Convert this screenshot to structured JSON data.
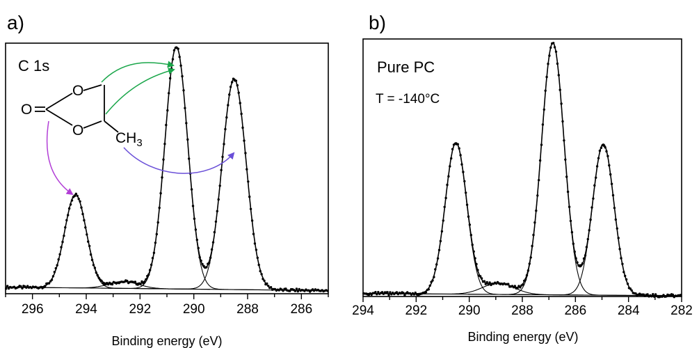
{
  "chart_data": [
    {
      "panel_label": "a)",
      "type": "scatter",
      "title": "",
      "annotation": "C 1s",
      "xlabel": "Binding energy (eV)",
      "ylabel": "",
      "xlim": [
        297,
        285
      ],
      "ylim": [
        0,
        1
      ],
      "x_reversed": true,
      "xticks": [
        296,
        294,
        292,
        290,
        288,
        286
      ],
      "xtick_labels": [
        "296",
        "294",
        "292",
        "290",
        "288",
        "286"
      ],
      "grid": false,
      "baseline": [
        [
          297,
          0.027
        ],
        [
          285,
          0.013
        ]
      ],
      "peaks": [
        {
          "center": 294.4,
          "height": 0.385,
          "fwhm": 0.95
        },
        {
          "center": 292.6,
          "height": 0.028,
          "fwhm": 1.3
        },
        {
          "center": 290.65,
          "height": 1.0,
          "fwhm": 1.0
        },
        {
          "center": 288.5,
          "height": 0.87,
          "fwhm": 1.05
        }
      ],
      "molecule": {
        "atoms": [
          "O",
          "O",
          "O"
        ],
        "substituent": "CH",
        "substituent_subscript": "3"
      },
      "arrows": [
        {
          "from": "ring CH2 carbon",
          "to_peak_center": 290.65,
          "color": "#1aa64a"
        },
        {
          "from": "ring CH carbon",
          "to_peak_center": 290.65,
          "color": "#1aa64a"
        },
        {
          "from": "carbonyl carbon",
          "to_peak_center": 294.4,
          "color": "#b23fd6"
        },
        {
          "from": "methyl carbon",
          "to_peak_center": 288.5,
          "color": "#6a4fd8"
        }
      ]
    },
    {
      "panel_label": "b)",
      "type": "scatter",
      "title": "",
      "annotation": "Pure PC",
      "annotation2": "T = -140°C",
      "xlabel": "Binding energy (eV)",
      "ylabel": "",
      "xlim": [
        294,
        282
      ],
      "ylim": [
        0,
        1
      ],
      "x_reversed": true,
      "xticks": [
        294,
        292,
        290,
        288,
        286,
        284,
        282
      ],
      "xtick_labels": [
        "294",
        "292",
        "290",
        "288",
        "286",
        "284",
        "282"
      ],
      "grid": false,
      "baseline": [
        [
          294,
          0.012
        ],
        [
          282,
          0.003
        ]
      ],
      "peaks": [
        {
          "center": 290.5,
          "height": 0.6,
          "fwhm": 0.95
        },
        {
          "center": 288.9,
          "height": 0.045,
          "fwhm": 1.4
        },
        {
          "center": 286.85,
          "height": 1.0,
          "fwhm": 1.0
        },
        {
          "center": 284.95,
          "height": 0.6,
          "fwhm": 0.95
        }
      ]
    }
  ]
}
